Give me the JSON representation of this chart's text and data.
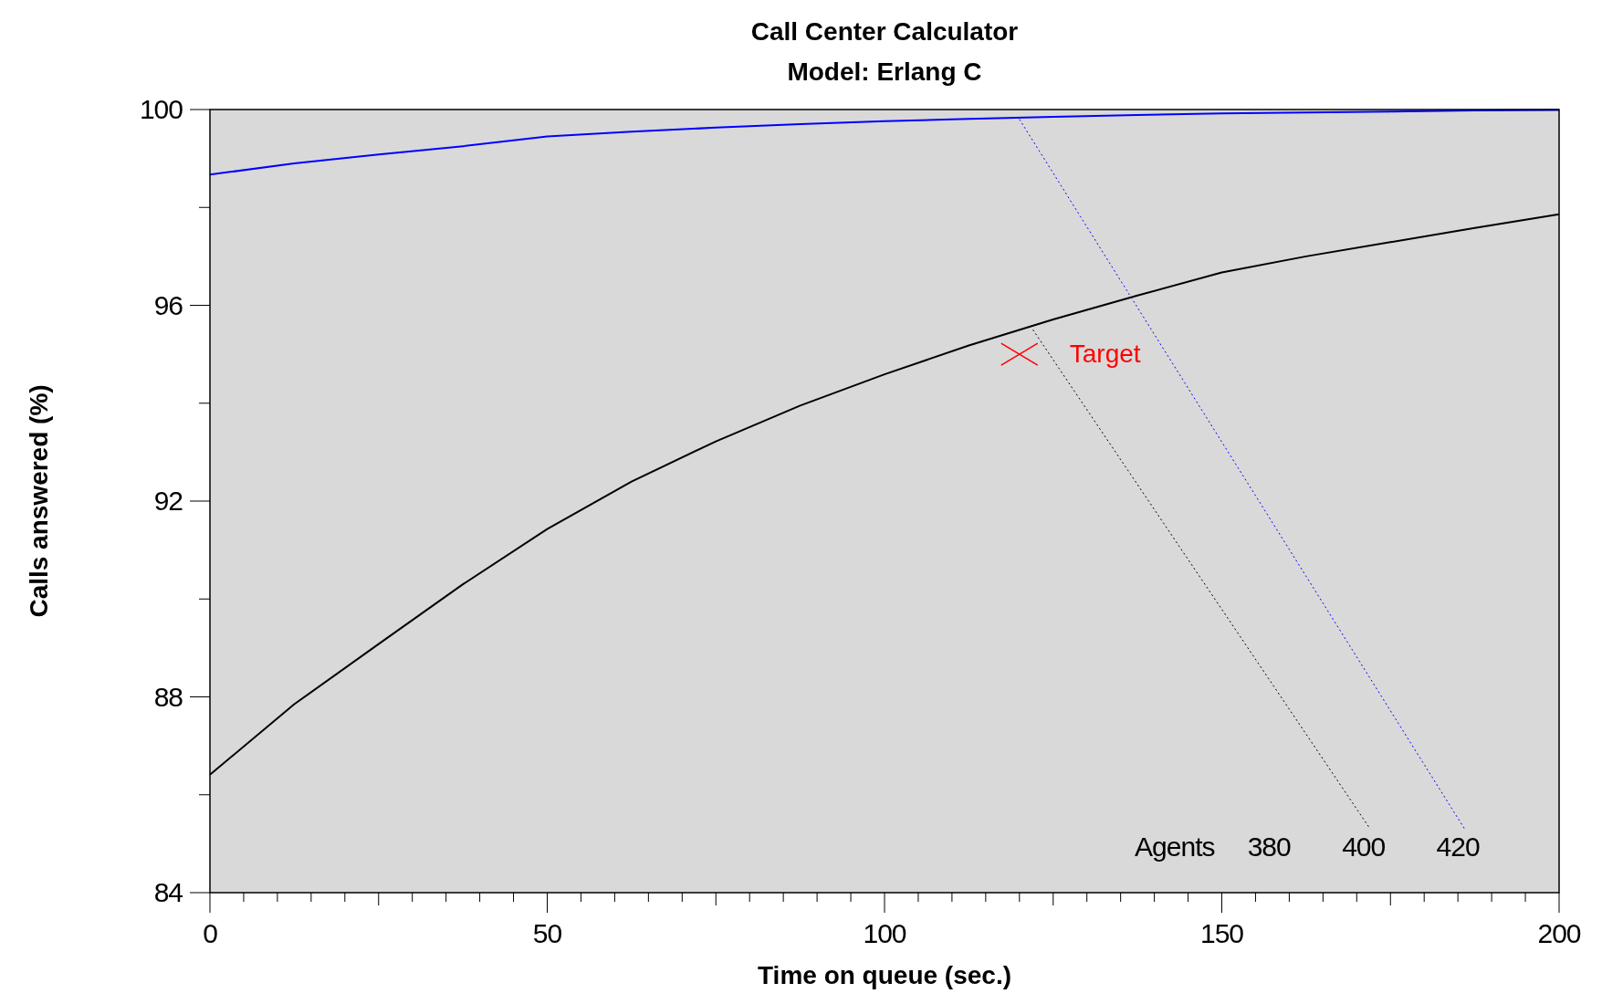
{
  "chart_data": {
    "type": "line",
    "title": "Call Center Calculator",
    "subtitle": "Model: Erlang C",
    "xlabel": "Time on queue (sec.)",
    "ylabel": "Calls answered (%)",
    "xlim": [
      0,
      200
    ],
    "ylim": [
      84,
      100
    ],
    "xticks": [
      0,
      {
        "value": 5,
        "label": null
      },
      {
        "value": 10,
        "label": null
      },
      {
        "value": 15,
        "label": null
      },
      {
        "value": 20,
        "label": null
      },
      {
        "value": 25,
        "label": null
      },
      {
        "value": 30,
        "label": null
      },
      {
        "value": 35,
        "label": null
      },
      {
        "value": 40,
        "label": null
      },
      {
        "value": 45,
        "label": null
      },
      50,
      {
        "value": 55,
        "label": null
      },
      {
        "value": 60,
        "label": null
      },
      {
        "value": 65,
        "label": null
      },
      {
        "value": 70,
        "label": null
      },
      {
        "value": 75,
        "label": null
      },
      {
        "value": 80,
        "label": null
      },
      {
        "value": 85,
        "label": null
      },
      {
        "value": 90,
        "label": null
      },
      {
        "value": 95,
        "label": null
      },
      100,
      {
        "value": 105,
        "label": null
      },
      {
        "value": 110,
        "label": null
      },
      {
        "value": 115,
        "label": null
      },
      {
        "value": 120,
        "label": null
      },
      {
        "value": 125,
        "label": null
      },
      {
        "value": 130,
        "label": null
      },
      {
        "value": 135,
        "label": null
      },
      {
        "value": 140,
        "label": null
      },
      {
        "value": 145,
        "label": null
      },
      150,
      {
        "value": 155,
        "label": null
      },
      {
        "value": 160,
        "label": null
      },
      {
        "value": 165,
        "label": null
      },
      {
        "value": 170,
        "label": null
      },
      {
        "value": 175,
        "label": null
      },
      {
        "value": 180,
        "label": null
      },
      {
        "value": 185,
        "label": null
      },
      {
        "value": 190,
        "label": null
      },
      {
        "value": 195,
        "label": null
      },
      200
    ],
    "yticks": [
      84,
      {
        "value": 86,
        "label": null
      },
      88,
      {
        "value": 90,
        "label": null
      },
      92,
      {
        "value": 94,
        "label": null
      },
      96,
      {
        "value": 98,
        "label": null
      },
      100
    ],
    "grid": false,
    "series": [
      {
        "color": "#0000ff",
        "x": [
          0,
          12.5,
          25,
          37.5,
          50,
          62.5,
          75,
          87.5,
          100,
          112.5,
          125,
          137.5,
          150,
          162.5,
          175,
          187.5,
          200
        ],
        "values": [
          98.67,
          98.9,
          99.08,
          99.25,
          99.45,
          99.55,
          99.63,
          99.7,
          99.76,
          99.81,
          99.85,
          99.89,
          99.92,
          99.94,
          99.96,
          99.98,
          99.99
        ]
      },
      {
        "color": "#000000",
        "x": [
          0,
          12.5,
          25,
          37.5,
          50,
          62.5,
          75,
          87.5,
          100,
          112.5,
          125,
          137.5,
          150,
          162.5,
          175,
          187.5,
          200
        ],
        "values": [
          86.41,
          87.85,
          89.08,
          90.3,
          91.43,
          92.4,
          93.22,
          93.95,
          94.59,
          95.18,
          95.71,
          96.2,
          96.67,
          97.0,
          97.29,
          97.58,
          97.86
        ]
      },
      {
        "type": "line",
        "line_style": "dotted",
        "color": "#000000",
        "x": [
          122,
          172
        ],
        "values": [
          95.5,
          85.3
        ]
      },
      {
        "type": "line",
        "line_style": "dotted",
        "color": "#0000ff",
        "x": [
          120,
          186
        ],
        "values": [
          99.8,
          85.3
        ]
      },
      {
        "type": "scatter",
        "name": "Target",
        "marker": "cross",
        "color": "#ff0000",
        "x": [
          120
        ],
        "values": [
          95
        ]
      }
    ],
    "annotations": [
      "Agents",
      "380",
      "400",
      "420"
    ]
  }
}
